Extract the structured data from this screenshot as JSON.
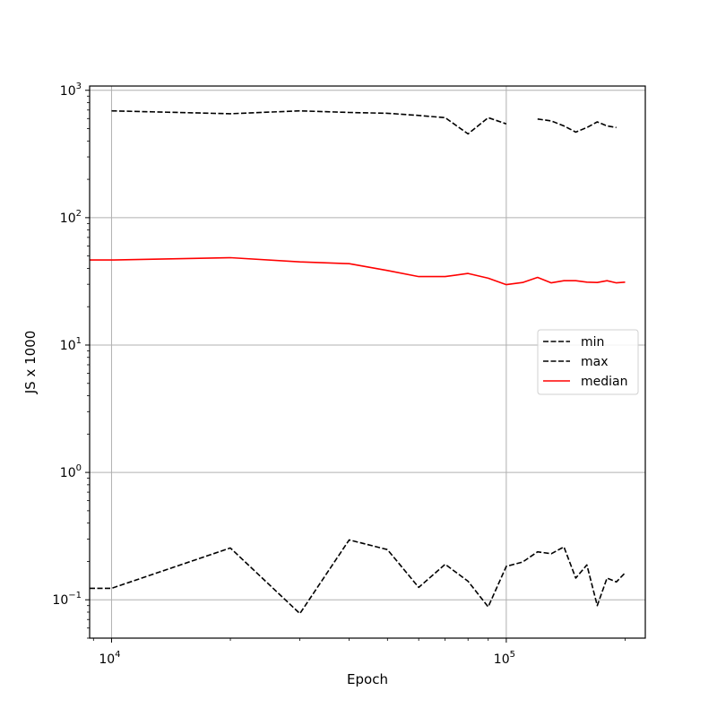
{
  "chart_data": {
    "type": "line",
    "xlabel": "Epoch",
    "ylabel": "JS x 1000",
    "xscale": "log",
    "yscale": "log",
    "xlim": [
      8800,
      225000
    ],
    "ylim": [
      0.05,
      1080
    ],
    "grid": true,
    "legend": "center-right",
    "x_ticks": [
      {
        "base": "10",
        "exp": "4",
        "value": 10000
      },
      {
        "base": "10",
        "exp": "5",
        "value": 100000
      }
    ],
    "x_minor_ticks": [
      20000,
      30000,
      40000,
      50000,
      60000,
      70000,
      80000,
      90000,
      200000
    ],
    "y_ticks": [
      {
        "base": "10",
        "exp": "−1",
        "value": 0.1
      },
      {
        "base": "10",
        "exp": "0",
        "value": 1
      },
      {
        "base": "10",
        "exp": "1",
        "value": 10
      },
      {
        "base": "10",
        "exp": "2",
        "value": 100
      },
      {
        "base": "10",
        "exp": "3",
        "value": 1000
      }
    ],
    "series": [
      {
        "name": "min",
        "color": "#000000",
        "dash": "dashed",
        "points": [
          [
            8800,
            0.123
          ],
          [
            10000,
            0.123
          ],
          [
            20000,
            0.255
          ],
          [
            30000,
            0.078
          ],
          [
            40000,
            0.295
          ],
          [
            50000,
            0.248
          ],
          [
            60000,
            0.125
          ],
          [
            70000,
            0.19
          ],
          [
            80000,
            0.14
          ],
          [
            90000,
            0.088
          ],
          [
            100000,
            0.183
          ],
          [
            110000,
            0.198
          ],
          [
            120000,
            0.238
          ],
          [
            130000,
            0.23
          ],
          [
            140000,
            0.26
          ],
          [
            150000,
            0.148
          ],
          [
            160000,
            0.188
          ],
          [
            170000,
            0.09
          ],
          [
            180000,
            0.148
          ],
          [
            190000,
            0.138
          ],
          [
            200000,
            0.163
          ]
        ]
      },
      {
        "name": "max",
        "color": "#000000",
        "dash": "dashed",
        "points": [
          [
            10000,
            690
          ],
          [
            20000,
            655
          ],
          [
            30000,
            690
          ],
          [
            40000,
            670
          ],
          [
            50000,
            660
          ],
          [
            60000,
            635
          ],
          [
            70000,
            610
          ],
          [
            80000,
            455
          ],
          [
            90000,
            610
          ],
          [
            100000,
            545
          ],
          [
            null,
            null
          ],
          [
            120000,
            595
          ],
          [
            130000,
            575
          ],
          [
            140000,
            525
          ],
          [
            150000,
            470
          ],
          [
            160000,
            510
          ],
          [
            170000,
            565
          ],
          [
            180000,
            525
          ],
          [
            190000,
            510
          ]
        ]
      },
      {
        "name": "median",
        "color": "#ff0000",
        "dash": "solid",
        "points": [
          [
            8800,
            46.5
          ],
          [
            10000,
            46.5
          ],
          [
            20000,
            48.5
          ],
          [
            30000,
            45
          ],
          [
            40000,
            43.5
          ],
          [
            50000,
            38.5
          ],
          [
            60000,
            34.5
          ],
          [
            70000,
            34.5
          ],
          [
            80000,
            36.5
          ],
          [
            90000,
            33.5
          ],
          [
            100000,
            29.8
          ],
          [
            110000,
            31
          ],
          [
            120000,
            34
          ],
          [
            130000,
            30.8
          ],
          [
            140000,
            32
          ],
          [
            150000,
            32
          ],
          [
            160000,
            31.2
          ],
          [
            170000,
            31
          ],
          [
            180000,
            32
          ],
          [
            190000,
            30.8
          ],
          [
            200000,
            31.2
          ]
        ]
      }
    ]
  }
}
